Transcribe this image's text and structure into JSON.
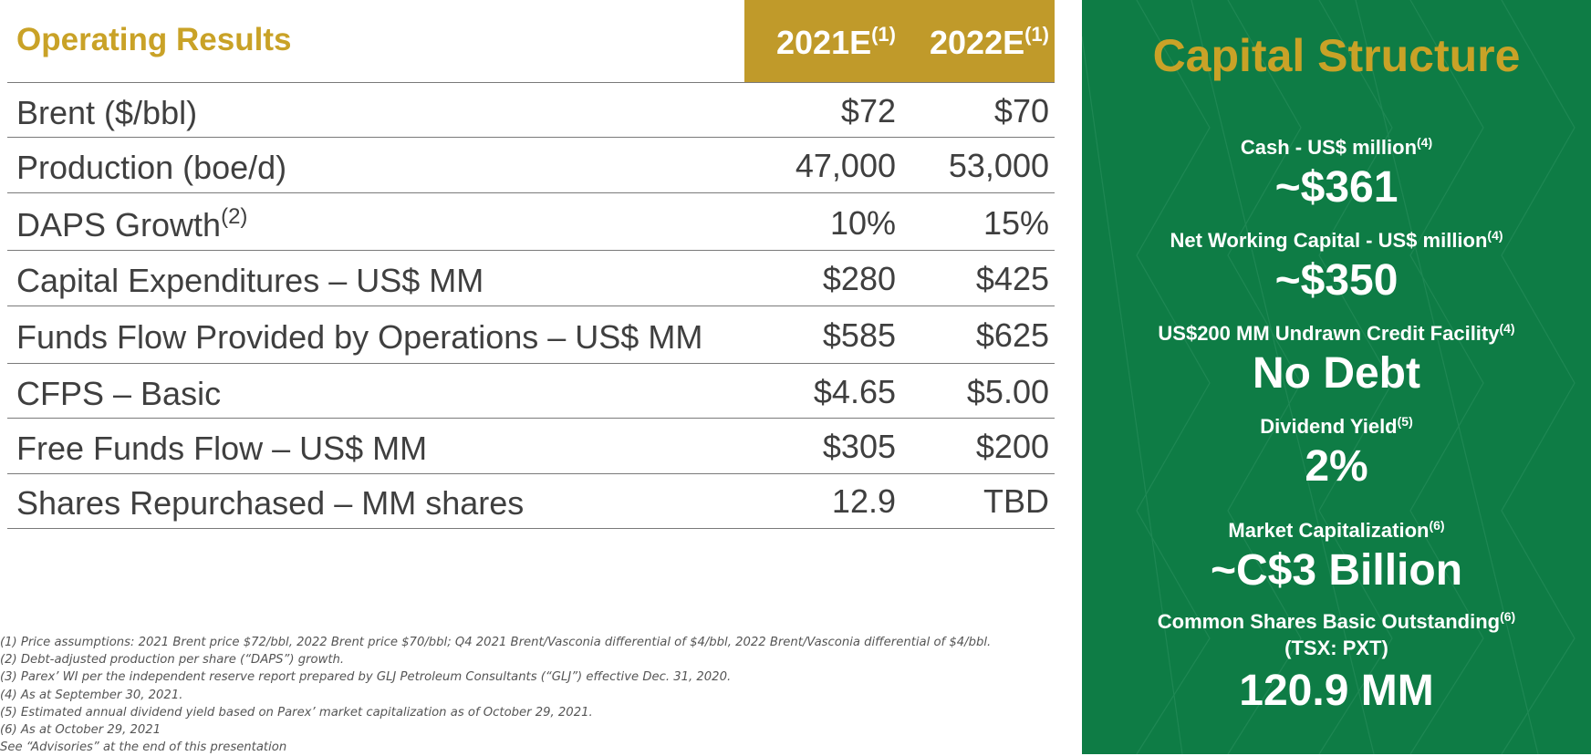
{
  "operating_results": {
    "title": "Operating Results",
    "columns": [
      {
        "label": "2021E",
        "note": "(1)"
      },
      {
        "label": "2022E",
        "note": "(1)"
      }
    ],
    "rows": [
      {
        "label": "Brent ($/bbl)",
        "note": "",
        "v2021": "$72",
        "v2022": "$70"
      },
      {
        "label": "Production (boe/d)",
        "note": "",
        "v2021": "47,000",
        "v2022": "53,000"
      },
      {
        "label": "DAPS Growth",
        "note": "(2)",
        "v2021": "10%",
        "v2022": "15%"
      },
      {
        "label": "Capital Expenditures – US$ MM",
        "note": "",
        "v2021": "$280",
        "v2022": "$425"
      },
      {
        "label": "Funds Flow Provided by Operations – US$ MM",
        "note": "",
        "v2021": "$585",
        "v2022": "$625"
      },
      {
        "label": "CFPS – Basic",
        "note": "",
        "v2021": "$4.65",
        "v2022": "$5.00"
      },
      {
        "label": "Free Funds Flow – US$ MM",
        "note": "",
        "v2021": "$305",
        "v2022": "$200"
      },
      {
        "label": "Shares Repurchased – MM shares",
        "note": "",
        "v2021": "12.9",
        "v2022": "TBD"
      }
    ]
  },
  "footnotes": [
    "(1)  Price assumptions: 2021 Brent price $72/bbl, 2022 Brent price $70/bbl; Q4 2021 Brent/Vasconia differential of $4/bbl, 2022 Brent/Vasconia differential of $4/bbl.",
    "(2)  Debt-adjusted production per share (“DAPS”) growth.",
    "(3)  Parex’ WI per the independent reserve report prepared by GLJ Petroleum Consultants (“GLJ”) effective Dec. 31, 2020.",
    "(4)  As at September 30, 2021.",
    "(5)  Estimated annual dividend yield based on Parex’ market capitalization as of October 29, 2021.",
    "(6)  As at October 29, 2021",
    "See “Advisories” at the end of this presentation"
  ],
  "capital_structure": {
    "title": "Capital Structure",
    "items": [
      {
        "label": "Cash - US$ million",
        "note": "(4)",
        "sublabel": "",
        "value": "~$361"
      },
      {
        "label": "Net Working Capital  - US$ million",
        "note": "(4)",
        "sublabel": "",
        "value": "~$350"
      },
      {
        "label": "US$200 MM Undrawn Credit Facility",
        "note": "(4)",
        "sublabel": "",
        "value": "No Debt"
      },
      {
        "label": "Dividend Yield",
        "note": "(5)",
        "sublabel": "",
        "value": "2%"
      },
      {
        "label": "Market Capitalization",
        "note": "(6)",
        "sublabel": "",
        "value": "~C$3 Billion"
      },
      {
        "label": "Common Shares Basic Outstanding",
        "note": "(6)",
        "sublabel": "(TSX: PXT)",
        "value": "120.9 MM"
      }
    ]
  },
  "colors": {
    "gold": "#c09a2a",
    "green": "#0e7c45",
    "text": "#3f3f3f"
  }
}
